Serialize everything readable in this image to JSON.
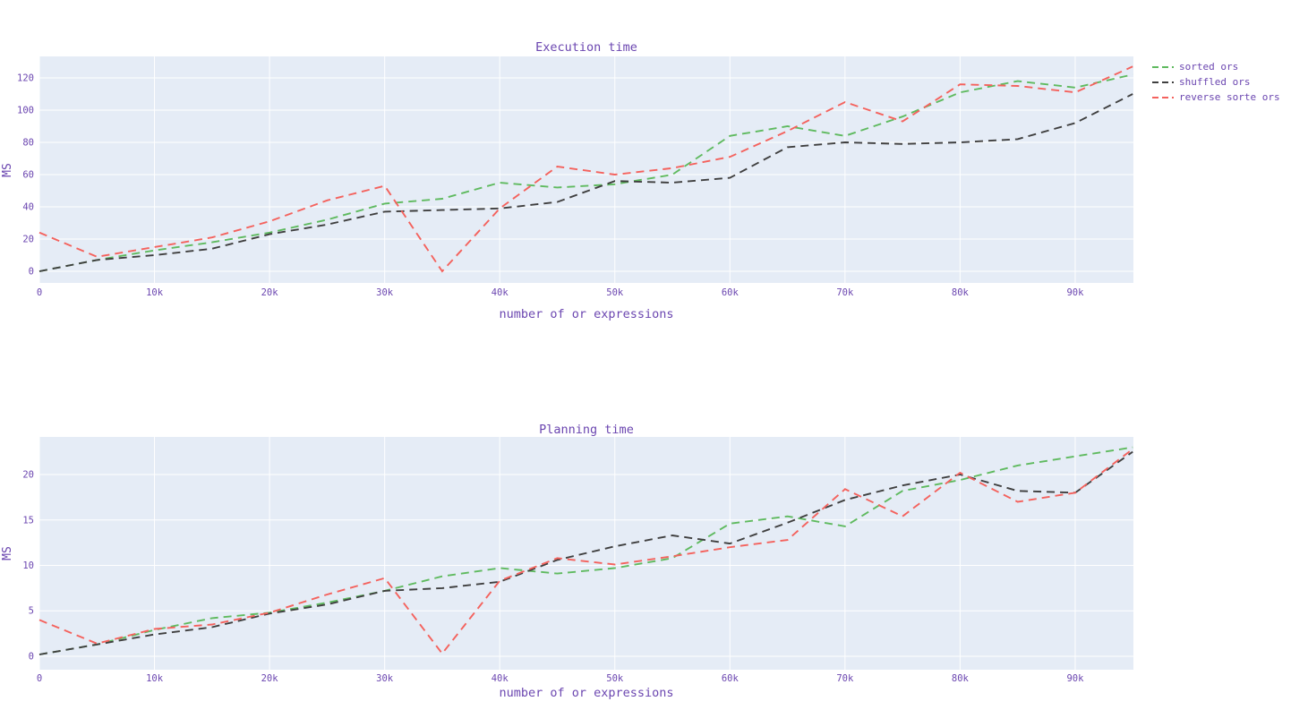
{
  "figure": {
    "background": "#ffffff",
    "plot_background": "#e5ecf6",
    "grid_color": "#ffffff",
    "text_color": "#6b46b0"
  },
  "legend": {
    "items": [
      {
        "label": "sorted ors",
        "color": "#5fba5f"
      },
      {
        "label": "shuffled ors",
        "color": "#3f3f3f"
      },
      {
        "label": "reverse sorte ors",
        "color": "#f4625d"
      }
    ]
  },
  "chart_data": [
    {
      "type": "line",
      "title": "Execution time",
      "xlabel": "number of or expressions",
      "ylabel": "MS",
      "line_style": "dashed",
      "grid": true,
      "legend_position": "top-right-outside",
      "x": [
        0,
        5000,
        10000,
        15000,
        20000,
        25000,
        30000,
        35000,
        40000,
        45000,
        50000,
        55000,
        60000,
        65000,
        70000,
        75000,
        80000,
        85000,
        90000,
        95000
      ],
      "xtick_values": [
        0,
        10000,
        20000,
        30000,
        40000,
        50000,
        60000,
        70000,
        80000,
        90000
      ],
      "xtick_labels": [
        "0",
        "10k",
        "20k",
        "30k",
        "40k",
        "50k",
        "60k",
        "70k",
        "80k",
        "90k"
      ],
      "ytick_values": [
        0,
        20,
        40,
        60,
        80,
        100,
        120
      ],
      "xlim": [
        0,
        95060
      ],
      "ylim": [
        -7.2,
        133.3
      ],
      "series": [
        {
          "name": "sorted ors",
          "color": "#5fba5f",
          "values": [
            0,
            7,
            13,
            18,
            24,
            32,
            42,
            45,
            55,
            52,
            54,
            60,
            84,
            90,
            84,
            96,
            111,
            118,
            114,
            122
          ]
        },
        {
          "name": "shuffled ors",
          "color": "#3f3f3f",
          "values": [
            0,
            7,
            10,
            14,
            23,
            29,
            37,
            38,
            39,
            43,
            56,
            55,
            58,
            77,
            80,
            79,
            80,
            82,
            92,
            110
          ]
        },
        {
          "name": "reverse sorte ors",
          "color": "#f4625d",
          "values": [
            24,
            9,
            15,
            21,
            31,
            44,
            53,
            0,
            39,
            65,
            60,
            64,
            71,
            87,
            105,
            93,
            116,
            115,
            111,
            127
          ]
        }
      ]
    },
    {
      "type": "line",
      "title": "Planning time",
      "xlabel": "number of or expressions",
      "ylabel": "MS",
      "line_style": "dashed",
      "grid": true,
      "legend_position": "none",
      "x": [
        0,
        5000,
        10000,
        15000,
        20000,
        25000,
        30000,
        35000,
        40000,
        45000,
        50000,
        55000,
        60000,
        65000,
        70000,
        75000,
        80000,
        85000,
        90000,
        95000
      ],
      "xtick_values": [
        0,
        10000,
        20000,
        30000,
        40000,
        50000,
        60000,
        70000,
        80000,
        90000
      ],
      "xtick_labels": [
        "0",
        "10k",
        "20k",
        "30k",
        "40k",
        "50k",
        "60k",
        "70k",
        "80k",
        "90k"
      ],
      "ytick_values": [
        0,
        5,
        10,
        15,
        20
      ],
      "xlim": [
        0,
        95060
      ],
      "ylim": [
        -1.48,
        24.14
      ],
      "series": [
        {
          "name": "sorted ors",
          "color": "#5fba5f",
          "values": [
            0.2,
            1.3,
            2.9,
            4.2,
            4.8,
            5.9,
            7.2,
            8.8,
            9.7,
            9.1,
            9.7,
            10.8,
            14.6,
            15.4,
            14.3,
            18.2,
            19.4,
            21.0,
            22.0,
            23.0
          ]
        },
        {
          "name": "shuffled ors",
          "color": "#3f3f3f",
          "values": [
            0.2,
            1.3,
            2.4,
            3.2,
            4.7,
            5.7,
            7.2,
            7.5,
            8.2,
            10.6,
            12.1,
            13.3,
            12.4,
            14.7,
            17.2,
            18.8,
            20.0,
            18.2,
            18.0,
            22.5
          ]
        },
        {
          "name": "reverse sorte ors",
          "color": "#f4625d",
          "values": [
            4.0,
            1.4,
            3.0,
            3.5,
            4.8,
            6.8,
            8.6,
            0.3,
            8.3,
            10.8,
            10.1,
            11.0,
            12.0,
            12.8,
            18.4,
            15.4,
            20.2,
            17.0,
            18.0,
            22.8
          ]
        }
      ]
    }
  ]
}
